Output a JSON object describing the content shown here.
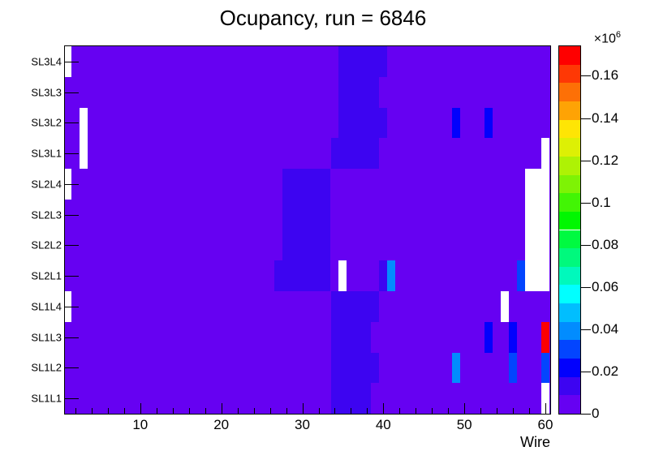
{
  "title": "Ocupancy, run = 6846",
  "axes": {
    "x_title": "Wire",
    "x_major_ticks": [
      10,
      20,
      30,
      40,
      50,
      60
    ],
    "x_minor_step": 2,
    "x_range_wires": [
      1,
      60
    ],
    "y_labels_top_to_bottom": [
      "SL3L4",
      "SL3L3",
      "SL3L2",
      "SL3L1",
      "SL2L4",
      "SL2L3",
      "SL2L2",
      "SL2L1",
      "SL1L4",
      "SL1L3",
      "SL1L2",
      "SL1L1"
    ]
  },
  "colorbar": {
    "exponent_label": "×10",
    "exponent_sup": "6",
    "tick_values": [
      0,
      0.02,
      0.04,
      0.06,
      0.08,
      0.1,
      0.12,
      0.14,
      0.16
    ],
    "tick_labels": [
      "0",
      "0.02",
      "0.04",
      "0.06",
      "0.08",
      "0.1",
      "0.12",
      "0.14",
      "0.16"
    ],
    "zmax": 0.174
  },
  "chart_data": {
    "type": "heatmap",
    "title": "Ocupancy, run = 6846",
    "xlabel": "Wire",
    "x_range": [
      1,
      60
    ],
    "rows_top_to_bottom": [
      "SL3L4",
      "SL3L3",
      "SL3L2",
      "SL3L1",
      "SL2L4",
      "SL2L3",
      "SL2L2",
      "SL2L1",
      "SL1L4",
      "SL1L3",
      "SL1L2",
      "SL1L1"
    ],
    "units": "counts × 10^6",
    "zmax": 0.174,
    "palette_bottom_to_top": [
      "#6601F2",
      "#3D04F1",
      "#0201FD",
      "#0345FE",
      "#028CFE",
      "#01BEFE",
      "#01FFFE",
      "#00F9BC",
      "#00F97D",
      "#00FA41",
      "#01F701",
      "#42F505",
      "#7EF305",
      "#AEF205",
      "#DDF005",
      "#FEE505",
      "#FEA305",
      "#FD7006",
      "#FE3805",
      "#FE0000"
    ],
    "no_data_color": "#FFFFFF",
    "background": {
      "band": 1,
      "approx_value": 0.005,
      "note": "all unlisted cells are band 1 violet"
    },
    "cells": [
      {
        "row": "SL3L4",
        "wire_from": 1,
        "wire_to": 1,
        "band": 0,
        "approx_value": 0
      },
      {
        "row": "SL3L4",
        "wire_from": 35,
        "wire_to": 40,
        "band": 2,
        "approx_value": 0.013
      },
      {
        "row": "SL3L3",
        "wire_from": 35,
        "wire_to": 39,
        "band": 2,
        "approx_value": 0.013
      },
      {
        "row": "SL3L2",
        "wire_from": 3,
        "wire_to": 3,
        "band": 0,
        "approx_value": 0
      },
      {
        "row": "SL3L2",
        "wire_from": 35,
        "wire_to": 40,
        "band": 2,
        "approx_value": 0.013
      },
      {
        "row": "SL3L2",
        "wire_from": 49,
        "wire_to": 49,
        "band": 3,
        "approx_value": 0.022
      },
      {
        "row": "SL3L2",
        "wire_from": 53,
        "wire_to": 53,
        "band": 3,
        "approx_value": 0.022
      },
      {
        "row": "SL3L1",
        "wire_from": 3,
        "wire_to": 3,
        "band": 0,
        "approx_value": 0
      },
      {
        "row": "SL3L1",
        "wire_from": 34,
        "wire_to": 39,
        "band": 2,
        "approx_value": 0.013
      },
      {
        "row": "SL3L1",
        "wire_from": 60,
        "wire_to": 60,
        "band": 0,
        "approx_value": 0
      },
      {
        "row": "SL2L4",
        "wire_from": 1,
        "wire_to": 1,
        "band": 0,
        "approx_value": 0
      },
      {
        "row": "SL2L4",
        "wire_from": 28,
        "wire_to": 33,
        "band": 2,
        "approx_value": 0.013
      },
      {
        "row": "SL2L4",
        "wire_from": 58,
        "wire_to": 60,
        "band": 0,
        "approx_value": 0
      },
      {
        "row": "SL2L3",
        "wire_from": 28,
        "wire_to": 33,
        "band": 2,
        "approx_value": 0.013
      },
      {
        "row": "SL2L3",
        "wire_from": 58,
        "wire_to": 60,
        "band": 0,
        "approx_value": 0
      },
      {
        "row": "SL2L2",
        "wire_from": 28,
        "wire_to": 33,
        "band": 2,
        "approx_value": 0.013
      },
      {
        "row": "SL2L2",
        "wire_from": 58,
        "wire_to": 60,
        "band": 0,
        "approx_value": 0
      },
      {
        "row": "SL2L1",
        "wire_from": 27,
        "wire_to": 33,
        "band": 2,
        "approx_value": 0.013
      },
      {
        "row": "SL2L1",
        "wire_from": 35,
        "wire_to": 35,
        "band": 0,
        "approx_value": 0
      },
      {
        "row": "SL2L1",
        "wire_from": 40,
        "wire_to": 40,
        "band": 2,
        "approx_value": 0.013
      },
      {
        "row": "SL2L1",
        "wire_from": 41,
        "wire_to": 41,
        "band": 5,
        "approx_value": 0.039
      },
      {
        "row": "SL2L1",
        "wire_from": 57,
        "wire_to": 57,
        "band": 4,
        "approx_value": 0.03
      },
      {
        "row": "SL2L1",
        "wire_from": 58,
        "wire_to": 60,
        "band": 0,
        "approx_value": 0
      },
      {
        "row": "SL1L4",
        "wire_from": 1,
        "wire_to": 1,
        "band": 0,
        "approx_value": 0
      },
      {
        "row": "SL1L4",
        "wire_from": 34,
        "wire_to": 39,
        "band": 2,
        "approx_value": 0.013
      },
      {
        "row": "SL1L4",
        "wire_from": 55,
        "wire_to": 55,
        "band": 0,
        "approx_value": 0
      },
      {
        "row": "SL1L3",
        "wire_from": 34,
        "wire_to": 38,
        "band": 2,
        "approx_value": 0.013
      },
      {
        "row": "SL1L3",
        "wire_from": 53,
        "wire_to": 53,
        "band": 3,
        "approx_value": 0.022
      },
      {
        "row": "SL1L3",
        "wire_from": 56,
        "wire_to": 56,
        "band": 3,
        "approx_value": 0.022
      },
      {
        "row": "SL1L3",
        "wire_from": 60,
        "wire_to": 60,
        "band": 20,
        "approx_value": 0.17
      },
      {
        "row": "SL1L2",
        "wire_from": 34,
        "wire_to": 39,
        "band": 2,
        "approx_value": 0.013
      },
      {
        "row": "SL1L2",
        "wire_from": 49,
        "wire_to": 49,
        "band": 5,
        "approx_value": 0.039
      },
      {
        "row": "SL1L2",
        "wire_from": 56,
        "wire_to": 56,
        "band": 4,
        "approx_value": 0.03
      },
      {
        "row": "SL1L2",
        "wire_from": 60,
        "wire_to": 60,
        "band": 4,
        "approx_value": 0.03
      },
      {
        "row": "SL1L1",
        "wire_from": 34,
        "wire_to": 38,
        "band": 2,
        "approx_value": 0.013
      },
      {
        "row": "SL1L1",
        "wire_from": 60,
        "wire_to": 60,
        "band": 0,
        "approx_value": 0
      }
    ]
  }
}
